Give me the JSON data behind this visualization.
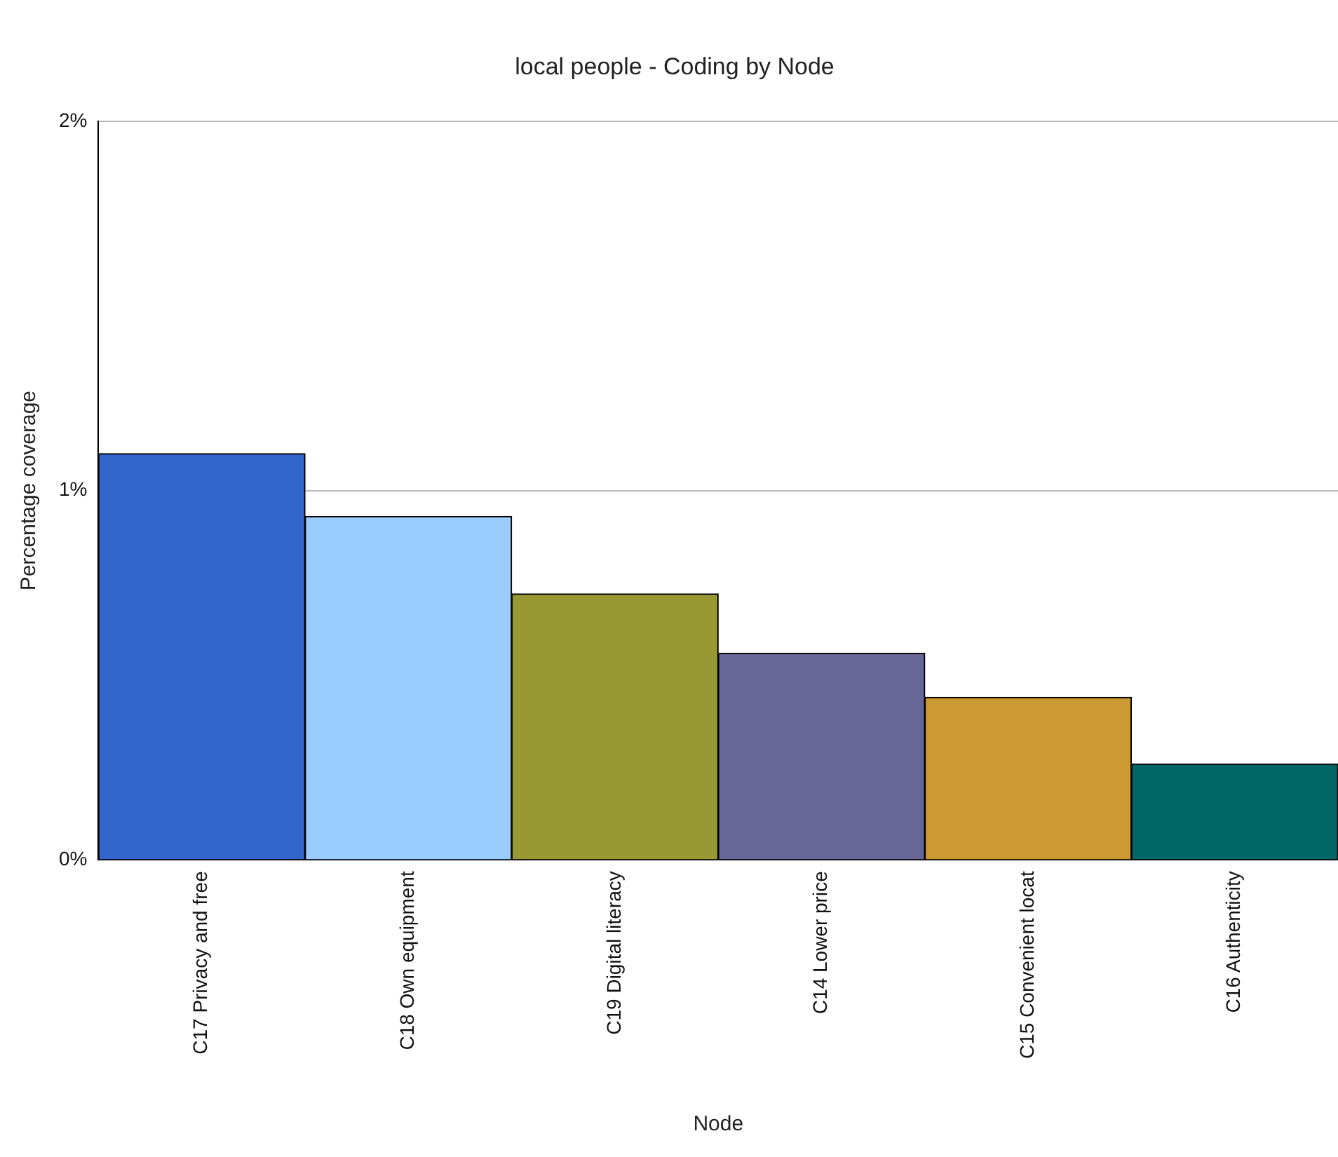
{
  "chart_data": {
    "type": "bar",
    "title": "local people - Coding by Node",
    "xlabel": "Node",
    "ylabel": "Percentage coverage",
    "categories": [
      "C17 Privacy and free",
      "C18 Own equipment",
      "C19 Digital literacy",
      "C14 Lower price",
      "C15 Convenient locat",
      "C16 Authenticity"
    ],
    "values": [
      1.1,
      0.93,
      0.72,
      0.56,
      0.44,
      0.26
    ],
    "colors": [
      "#3366cc",
      "#99ccff",
      "#999933",
      "#666699",
      "#cc9933",
      "#006666"
    ],
    "ylim": [
      0,
      2
    ],
    "yticks": [
      {
        "value": 0,
        "label": "0%"
      },
      {
        "value": 1,
        "label": "1%"
      },
      {
        "value": 2,
        "label": "2%"
      }
    ],
    "grid": "y",
    "legend": false
  }
}
